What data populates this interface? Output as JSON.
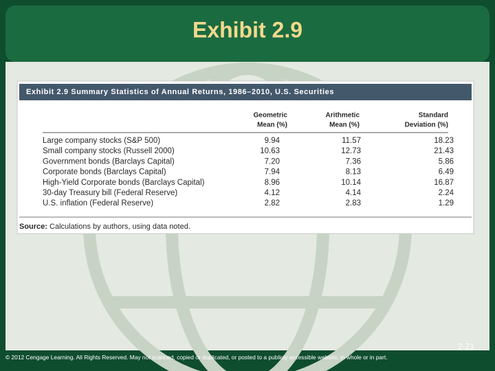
{
  "header": {
    "title": "Exhibit 2.9"
  },
  "table": {
    "caption": "Exhibit 2.9 Summary Statistics of Annual Returns, 1986–2010, U.S. Securities",
    "columns": [
      [
        "Geometric",
        "Mean (%)"
      ],
      [
        "Arithmetic",
        "Mean (%)"
      ],
      [
        "Standard",
        "Deviation (%)"
      ]
    ],
    "rows": [
      [
        "Large company stocks (S&P 500)",
        "9.94",
        "11.57",
        "18.23"
      ],
      [
        "Small company stocks (Russell 2000)",
        "10.63",
        "12.73",
        "21.43"
      ],
      [
        "Government bonds (Barclays Capital)",
        "7.20",
        "7.36",
        "5.86"
      ],
      [
        "Corporate bonds (Barclays Capital)",
        "7.94",
        "8.13",
        "6.49"
      ],
      [
        "High-Yield Corporate bonds (Barclays Capital)",
        "8.96",
        "10.14",
        "16.87"
      ],
      [
        "30-day Treasury bill (Federal Reserve)",
        "4.12",
        "4.14",
        "2.24"
      ],
      [
        "U.S. inflation (Federal Reserve)",
        "2.82",
        "2.83",
        "1.29"
      ]
    ],
    "source": {
      "label": "Source:",
      "text": "Calculations by authors, using data noted."
    }
  },
  "footer": {
    "page": "2-21",
    "copyright": "© 2012 Cengage Learning. All Rights Reserved. May not scanned, copied or duplicated, or posted to a publicly accessible website, in whole or in part."
  }
}
